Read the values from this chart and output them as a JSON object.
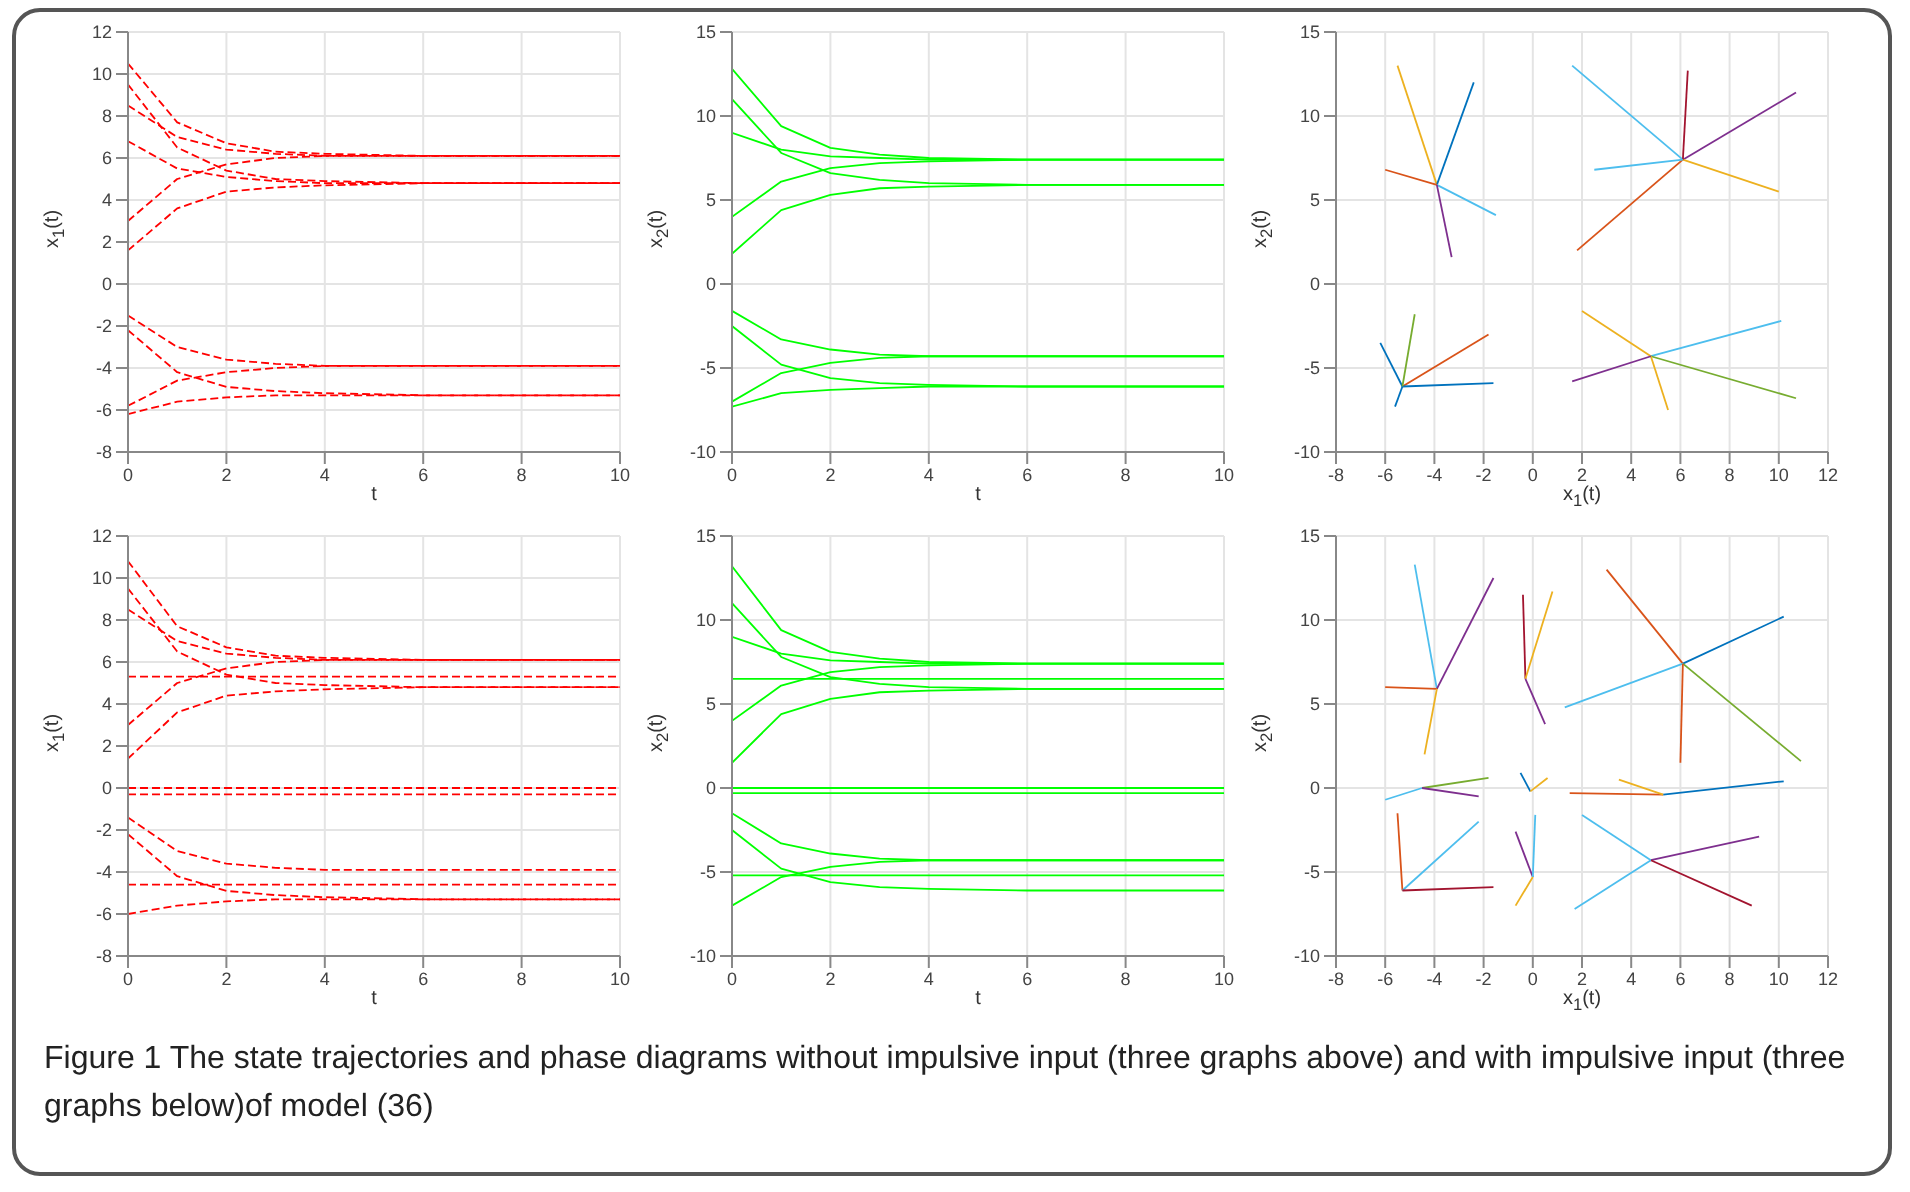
{
  "chart_data": [
    {
      "type": "line",
      "xlabel": "t",
      "ylabel": "x$_{1}$(t)",
      "xlim": [
        0,
        10
      ],
      "ylim": [
        -8,
        12
      ],
      "xticks": [
        0,
        2,
        4,
        6,
        8,
        10
      ],
      "yticks": [
        -8,
        -6,
        -4,
        -2,
        0,
        2,
        4,
        6,
        8,
        10,
        12
      ],
      "grid": true,
      "line_style": "dashed",
      "x": [
        0,
        1,
        2,
        3,
        4,
        6,
        10
      ],
      "series": [
        {
          "color": "#ff0000",
          "values": [
            10.5,
            7.7,
            6.7,
            6.3,
            6.2,
            6.1,
            6.1
          ]
        },
        {
          "color": "#ff0000",
          "values": [
            8.5,
            7.0,
            6.4,
            6.2,
            6.1,
            6.1,
            6.1
          ]
        },
        {
          "color": "#ff0000",
          "values": [
            3,
            5.0,
            5.7,
            6.0,
            6.1,
            6.1,
            6.1
          ]
        },
        {
          "color": "#ff0000",
          "values": [
            9.5,
            6.5,
            5.4,
            5.0,
            4.9,
            4.8,
            4.8
          ]
        },
        {
          "color": "#ff0000",
          "values": [
            1.6,
            3.6,
            4.4,
            4.6,
            4.7,
            4.8,
            4.8
          ]
        },
        {
          "color": "#ff0000",
          "values": [
            6.8,
            5.5,
            5.1,
            4.9,
            4.8,
            4.8,
            4.8
          ]
        },
        {
          "color": "#ff0000",
          "values": [
            -1.5,
            -3.0,
            -3.6,
            -3.8,
            -3.9,
            -3.9,
            -3.9
          ]
        },
        {
          "color": "#ff0000",
          "values": [
            -5.8,
            -4.6,
            -4.2,
            -4.0,
            -3.9,
            -3.9,
            -3.9
          ]
        },
        {
          "color": "#ff0000",
          "values": [
            -2.2,
            -4.2,
            -4.9,
            -5.1,
            -5.2,
            -5.3,
            -5.3
          ]
        },
        {
          "color": "#ff0000",
          "values": [
            -6.2,
            -5.6,
            -5.4,
            -5.3,
            -5.3,
            -5.3,
            -5.3
          ]
        }
      ]
    },
    {
      "type": "line",
      "xlabel": "t",
      "ylabel": "x$_{2}$(t)",
      "xlim": [
        0,
        10
      ],
      "ylim": [
        -10,
        15
      ],
      "xticks": [
        0,
        2,
        4,
        6,
        8,
        10
      ],
      "yticks": [
        -10,
        -5,
        0,
        5,
        10,
        15
      ],
      "grid": true,
      "line_style": "solid",
      "x": [
        0,
        1,
        2,
        3,
        4,
        6,
        10
      ],
      "series": [
        {
          "color": "#00ff00",
          "values": [
            12.8,
            9.4,
            8.1,
            7.7,
            7.5,
            7.4,
            7.4
          ]
        },
        {
          "color": "#00ff00",
          "values": [
            9,
            8.0,
            7.6,
            7.5,
            7.4,
            7.4,
            7.4
          ]
        },
        {
          "color": "#00ff00",
          "values": [
            4,
            6.1,
            6.9,
            7.2,
            7.3,
            7.4,
            7.4
          ]
        },
        {
          "color": "#00ff00",
          "values": [
            11,
            7.8,
            6.6,
            6.2,
            6.0,
            5.9,
            5.9
          ]
        },
        {
          "color": "#00ff00",
          "values": [
            1.8,
            4.4,
            5.3,
            5.7,
            5.8,
            5.9,
            5.9
          ]
        },
        {
          "color": "#00ff00",
          "values": [
            -1.6,
            -3.3,
            -3.9,
            -4.2,
            -4.3,
            -4.3,
            -4.3
          ]
        },
        {
          "color": "#00ff00",
          "values": [
            -7,
            -5.3,
            -4.7,
            -4.4,
            -4.3,
            -4.3,
            -4.3
          ]
        },
        {
          "color": "#00ff00",
          "values": [
            -2.5,
            -4.8,
            -5.6,
            -5.9,
            -6.0,
            -6.1,
            -6.1
          ]
        },
        {
          "color": "#00ff00",
          "values": [
            -7.3,
            -6.5,
            -6.3,
            -6.2,
            -6.1,
            -6.1,
            -6.1
          ]
        }
      ]
    },
    {
      "type": "line",
      "xlabel": "x$_{1}$(t)",
      "ylabel": "x$_{2}$(t)",
      "xlim": [
        -8,
        12
      ],
      "ylim": [
        -10,
        15
      ],
      "xticks": [
        -8,
        -6,
        -4,
        -2,
        0,
        2,
        4,
        6,
        8,
        10,
        12
      ],
      "yticks": [
        -10,
        -5,
        0,
        5,
        10,
        15
      ],
      "grid": true,
      "line_style": "solid",
      "series": [
        {
          "color": "#edb120",
          "x": [
            -5.5,
            -3.9
          ],
          "values": [
            13,
            5.9
          ]
        },
        {
          "color": "#0072bd",
          "x": [
            -2.4,
            -3.9
          ],
          "values": [
            12,
            5.9
          ]
        },
        {
          "color": "#d95319",
          "x": [
            -6,
            -3.9
          ],
          "values": [
            6.8,
            5.9
          ]
        },
        {
          "color": "#4dbeee",
          "x": [
            -1.5,
            -3.9
          ],
          "values": [
            4.1,
            5.9
          ]
        },
        {
          "color": "#7e2f8e",
          "x": [
            -3.3,
            -3.9
          ],
          "values": [
            1.6,
            5.9
          ]
        },
        {
          "color": "#4dbeee",
          "x": [
            1.6,
            6.1
          ],
          "values": [
            13,
            7.4
          ]
        },
        {
          "color": "#7e2f8e",
          "x": [
            10.7,
            6.1
          ],
          "values": [
            11.4,
            7.4
          ]
        },
        {
          "color": "#d95319",
          "x": [
            1.8,
            6.1
          ],
          "values": [
            2,
            7.4
          ]
        },
        {
          "color": "#edb120",
          "x": [
            10,
            6.1
          ],
          "values": [
            5.5,
            7.4
          ]
        },
        {
          "color": "#a2142f",
          "x": [
            6.3,
            6.1
          ],
          "values": [
            12.7,
            7.4
          ]
        },
        {
          "color": "#4dbeee",
          "x": [
            2.5,
            6.1
          ],
          "values": [
            6.8,
            7.4
          ]
        },
        {
          "color": "#0072bd",
          "x": [
            -6.2,
            -5.3
          ],
          "values": [
            -3.5,
            -6.1
          ]
        },
        {
          "color": "#d95319",
          "x": [
            -1.8,
            -5.3
          ],
          "values": [
            -3,
            -6.1
          ]
        },
        {
          "color": "#0072bd",
          "x": [
            -1.6,
            -5.3
          ],
          "values": [
            -5.9,
            -6.1
          ]
        },
        {
          "color": "#77ac30",
          "x": [
            -4.8,
            -5.3
          ],
          "values": [
            -1.8,
            -6.1
          ]
        },
        {
          "color": "#0072bd",
          "x": [
            -5.6,
            -5.3
          ],
          "values": [
            -7.3,
            -6.1
          ]
        },
        {
          "color": "#edb120",
          "x": [
            2,
            4.8
          ],
          "values": [
            -1.6,
            -4.3
          ]
        },
        {
          "color": "#4dbeee",
          "x": [
            10.1,
            4.8
          ],
          "values": [
            -2.2,
            -4.3
          ]
        },
        {
          "color": "#77ac30",
          "x": [
            10.7,
            4.8
          ],
          "values": [
            -6.8,
            -4.3
          ]
        },
        {
          "color": "#edb120",
          "x": [
            5.5,
            4.8
          ],
          "values": [
            -7.5,
            -4.3
          ]
        },
        {
          "color": "#7e2f8e",
          "x": [
            1.6,
            4.8
          ],
          "values": [
            -5.8,
            -4.3
          ]
        }
      ]
    },
    {
      "type": "line",
      "xlabel": "t",
      "ylabel": "x$_{1}$(t)",
      "xlim": [
        0,
        10
      ],
      "ylim": [
        -8,
        12
      ],
      "xticks": [
        0,
        2,
        4,
        6,
        8,
        10
      ],
      "yticks": [
        -8,
        -6,
        -4,
        -2,
        0,
        2,
        4,
        6,
        8,
        10,
        12
      ],
      "grid": true,
      "line_style": "dashed",
      "x": [
        0,
        1,
        2,
        3,
        4,
        6,
        10
      ],
      "series": [
        {
          "color": "#ff0000",
          "values": [
            10.8,
            7.7,
            6.7,
            6.3,
            6.2,
            6.1,
            6.1
          ]
        },
        {
          "color": "#ff0000",
          "values": [
            8.5,
            7.0,
            6.4,
            6.2,
            6.1,
            6.1,
            6.1
          ]
        },
        {
          "color": "#ff0000",
          "values": [
            3,
            5.0,
            5.7,
            6.0,
            6.1,
            6.1,
            6.1
          ]
        },
        {
          "color": "#ff0000",
          "values": [
            9.5,
            6.5,
            5.4,
            5.0,
            4.9,
            4.8,
            4.8
          ]
        },
        {
          "color": "#ff0000",
          "values": [
            1.4,
            3.6,
            4.4,
            4.6,
            4.7,
            4.8,
            4.8
          ]
        },
        {
          "color": "#ff0000",
          "values": [
            5.3,
            5.3,
            5.3,
            5.3,
            5.3,
            5.3,
            5.3
          ]
        },
        {
          "color": "#ff0000",
          "values": [
            0,
            0,
            0,
            0,
            0,
            0,
            0
          ]
        },
        {
          "color": "#ff0000",
          "values": [
            -0.3,
            -0.3,
            -0.3,
            -0.3,
            -0.3,
            -0.3,
            -0.3
          ]
        },
        {
          "color": "#ff0000",
          "values": [
            -1.4,
            -3.0,
            -3.6,
            -3.8,
            -3.9,
            -3.9,
            -3.9
          ]
        },
        {
          "color": "#ff0000",
          "values": [
            -4.6,
            -4.6,
            -4.6,
            -4.6,
            -4.6,
            -4.6,
            -4.6
          ]
        },
        {
          "color": "#ff0000",
          "values": [
            -2.2,
            -4.2,
            -4.9,
            -5.1,
            -5.2,
            -5.3,
            -5.3
          ]
        },
        {
          "color": "#ff0000",
          "values": [
            -6,
            -5.6,
            -5.4,
            -5.3,
            -5.3,
            -5.3,
            -5.3
          ]
        }
      ]
    },
    {
      "type": "line",
      "xlabel": "t",
      "ylabel": "x$_{2}$(t)",
      "xlim": [
        0,
        10
      ],
      "ylim": [
        -10,
        15
      ],
      "xticks": [
        0,
        2,
        4,
        6,
        8,
        10
      ],
      "yticks": [
        -10,
        -5,
        0,
        5,
        10,
        15
      ],
      "grid": true,
      "line_style": "solid",
      "x": [
        0,
        1,
        2,
        3,
        4,
        6,
        10
      ],
      "series": [
        {
          "color": "#00ff00",
          "values": [
            13.2,
            9.4,
            8.1,
            7.7,
            7.5,
            7.4,
            7.4
          ]
        },
        {
          "color": "#00ff00",
          "values": [
            9,
            8.0,
            7.6,
            7.5,
            7.4,
            7.4,
            7.4
          ]
        },
        {
          "color": "#00ff00",
          "values": [
            4,
            6.1,
            6.9,
            7.2,
            7.3,
            7.4,
            7.4
          ]
        },
        {
          "color": "#00ff00",
          "values": [
            6.5,
            6.5,
            6.5,
            6.5,
            6.5,
            6.5,
            6.5
          ]
        },
        {
          "color": "#00ff00",
          "values": [
            11,
            7.8,
            6.6,
            6.2,
            6.0,
            5.9,
            5.9
          ]
        },
        {
          "color": "#00ff00",
          "values": [
            1.5,
            4.4,
            5.3,
            5.7,
            5.8,
            5.9,
            5.9
          ]
        },
        {
          "color": "#00ff00",
          "values": [
            0,
            0,
            0,
            0,
            0,
            0,
            0
          ]
        },
        {
          "color": "#00ff00",
          "values": [
            -0.3,
            -0.3,
            -0.3,
            -0.3,
            -0.3,
            -0.3,
            -0.3
          ]
        },
        {
          "color": "#00ff00",
          "values": [
            -1.5,
            -3.3,
            -3.9,
            -4.2,
            -4.3,
            -4.3,
            -4.3
          ]
        },
        {
          "color": "#00ff00",
          "values": [
            -5.2,
            -5.2,
            -5.2,
            -5.2,
            -5.2,
            -5.2,
            -5.2
          ]
        },
        {
          "color": "#00ff00",
          "values": [
            -7,
            -5.3,
            -4.7,
            -4.4,
            -4.3,
            -4.3,
            -4.3
          ]
        },
        {
          "color": "#00ff00",
          "values": [
            -2.5,
            -4.8,
            -5.6,
            -5.9,
            -6.0,
            -6.1,
            -6.1
          ]
        }
      ]
    },
    {
      "type": "line",
      "xlabel": "x$_{1}$(t)",
      "ylabel": "x$_{2}$(t)",
      "xlim": [
        -8,
        12
      ],
      "ylim": [
        -10,
        15
      ],
      "xticks": [
        -8,
        -6,
        -4,
        -2,
        0,
        2,
        4,
        6,
        8,
        10,
        12
      ],
      "yticks": [
        -10,
        -5,
        0,
        5,
        10,
        15
      ],
      "grid": true,
      "line_style": "solid",
      "annotations": [
        "Figure 1  The state trajectories and phase diagrams without impulsive input (three graphs above) and with impulsive input (three graphs below)of model (36)"
      ],
      "series": [
        {
          "color": "#4dbeee",
          "x": [
            -4.8,
            -3.9
          ],
          "values": [
            13.3,
            5.9
          ]
        },
        {
          "color": "#7e2f8e",
          "x": [
            -1.6,
            -3.9
          ],
          "values": [
            12.5,
            5.9
          ]
        },
        {
          "color": "#d95319",
          "x": [
            -6,
            -3.9
          ],
          "values": [
            6,
            5.9
          ]
        },
        {
          "color": "#edb120",
          "x": [
            -4.4,
            -3.9
          ],
          "values": [
            2,
            5.9
          ]
        },
        {
          "color": "#a2142f",
          "x": [
            -0.4,
            -0.3
          ],
          "values": [
            11.5,
            6.5
          ]
        },
        {
          "color": "#edb120",
          "x": [
            0.8,
            -0.3
          ],
          "values": [
            11.7,
            6.5
          ]
        },
        {
          "color": "#7e2f8e",
          "x": [
            0.5,
            -0.3
          ],
          "values": [
            3.8,
            6.5
          ]
        },
        {
          "color": "#d95319",
          "x": [
            3,
            6.1
          ],
          "values": [
            13,
            7.4
          ]
        },
        {
          "color": "#0072bd",
          "x": [
            10.2,
            6.1
          ],
          "values": [
            10.2,
            7.4
          ]
        },
        {
          "color": "#77ac30",
          "x": [
            10.9,
            6.1
          ],
          "values": [
            1.6,
            7.4
          ]
        },
        {
          "color": "#4dbeee",
          "x": [
            1.3,
            6.1
          ],
          "values": [
            4.8,
            7.4
          ]
        },
        {
          "color": "#d95319",
          "x": [
            6,
            6.1
          ],
          "values": [
            1.5,
            7.4
          ]
        },
        {
          "color": "#4dbeee",
          "x": [
            -6,
            -4.5
          ],
          "values": [
            -0.7,
            0
          ]
        },
        {
          "color": "#77ac30",
          "x": [
            -1.8,
            -4.5
          ],
          "values": [
            0.6,
            0
          ]
        },
        {
          "color": "#7e2f8e",
          "x": [
            -2.2,
            -4.5
          ],
          "values": [
            -0.5,
            0
          ]
        },
        {
          "color": "#0072bd",
          "x": [
            -0.5,
            -0.1
          ],
          "values": [
            0.9,
            -0.2
          ]
        },
        {
          "color": "#edb120",
          "x": [
            0.6,
            -0.1
          ],
          "values": [
            0.6,
            -0.2
          ]
        },
        {
          "color": "#d95319",
          "x": [
            1.5,
            5.3
          ],
          "values": [
            -0.3,
            -0.4
          ]
        },
        {
          "color": "#0072bd",
          "x": [
            10.2,
            5.3
          ],
          "values": [
            0.4,
            -0.4
          ]
        },
        {
          "color": "#edb120",
          "x": [
            3.5,
            5.3
          ],
          "values": [
            0.5,
            -0.4
          ]
        },
        {
          "color": "#d95319",
          "x": [
            -5.5,
            -5.3
          ],
          "values": [
            -1.5,
            -6.1
          ]
        },
        {
          "color": "#4dbeee",
          "x": [
            -2.2,
            -5.3
          ],
          "values": [
            -2,
            -6.1
          ]
        },
        {
          "color": "#a2142f",
          "x": [
            -1.6,
            -5.3
          ],
          "values": [
            -5.9,
            -6.1
          ]
        },
        {
          "color": "#7e2f8e",
          "x": [
            -0.7,
            0
          ],
          "values": [
            -2.6,
            -5.3
          ]
        },
        {
          "color": "#4dbeee",
          "x": [
            0.1,
            0
          ],
          "values": [
            -1.6,
            -5.3
          ]
        },
        {
          "color": "#edb120",
          "x": [
            -0.7,
            0
          ],
          "values": [
            -7,
            -5.3
          ]
        },
        {
          "color": "#4dbeee",
          "x": [
            1.7,
            4.8
          ],
          "values": [
            -7.2,
            -4.3
          ]
        },
        {
          "color": "#7e2f8e",
          "x": [
            9.2,
            4.8
          ],
          "values": [
            -2.9,
            -4.3
          ]
        },
        {
          "color": "#a2142f",
          "x": [
            8.9,
            4.8
          ],
          "values": [
            -7,
            -4.3
          ]
        },
        {
          "color": "#4dbeee",
          "x": [
            2,
            4.8
          ],
          "values": [
            -1.6,
            -4.3
          ]
        }
      ]
    }
  ]
}
